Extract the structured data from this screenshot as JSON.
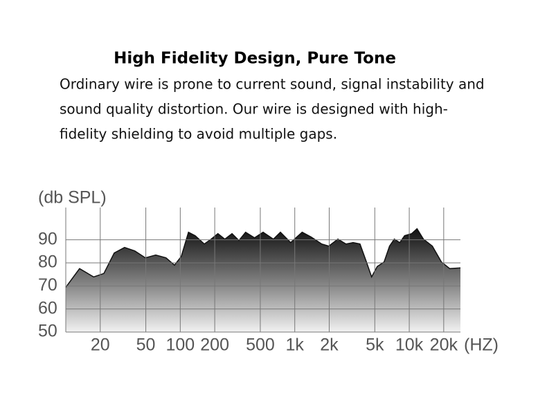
{
  "chart_data": {
    "type": "area",
    "title": "High Fidelity Design, Pure Tone",
    "subtitle": [
      "Ordinary wire is prone to current sound, signal instability and",
      "sound quality distortion. Our wire is designed with high-",
      "fidelity shielding to avoid multiple gaps."
    ],
    "y_label": "(db SPL)",
    "x_label": "(HZ)",
    "x_scale": "log",
    "xlim": [
      10,
      28000
    ],
    "ylim": [
      50,
      104
    ],
    "xticks": [
      20,
      50,
      100,
      200,
      500,
      {
        "value": 1000,
        "label": "1k"
      },
      {
        "value": 2000,
        "label": "2k"
      },
      {
        "value": 5000,
        "label": "5k"
      },
      {
        "value": 10000,
        "label": "10k"
      },
      {
        "value": 20000,
        "label": "20k"
      }
    ],
    "yticks": [
      50,
      60,
      70,
      80,
      90
    ],
    "grid": true,
    "color": "#111111",
    "x": [
      10,
      13.2,
      17.5,
      21.5,
      26.5,
      32.6,
      40,
      49.6,
      61,
      75,
      89,
      102,
      118,
      135,
      162,
      186,
      213,
      245,
      283,
      325,
      372,
      445,
      529,
      651,
      749,
      920,
      1160,
      1390,
      1720,
      1980,
      2380,
      2800,
      3230,
      3710,
      4260,
      4690,
      5250,
      6030,
      6730,
      7410,
      8270,
      9120,
      10500,
      11700,
      13300,
      15900,
      19100,
      22600,
      28000
    ],
    "values": [
      69.4,
      77.5,
      73.9,
      75.4,
      84.3,
      86.7,
      85.2,
      82.2,
      83.4,
      82.2,
      79,
      82.8,
      93.3,
      91.8,
      88.2,
      90.3,
      92.7,
      90.3,
      92.7,
      89.7,
      93.3,
      90.9,
      93.3,
      90.3,
      93.3,
      88.8,
      93.3,
      91.2,
      88.2,
      87.3,
      90.3,
      88.2,
      88.8,
      88.2,
      79.9,
      73.9,
      78.4,
      80.4,
      87.3,
      90.3,
      88.8,
      91.8,
      92.7,
      94.8,
      90.3,
      87.3,
      80.4,
      77.5,
      77.8
    ]
  }
}
